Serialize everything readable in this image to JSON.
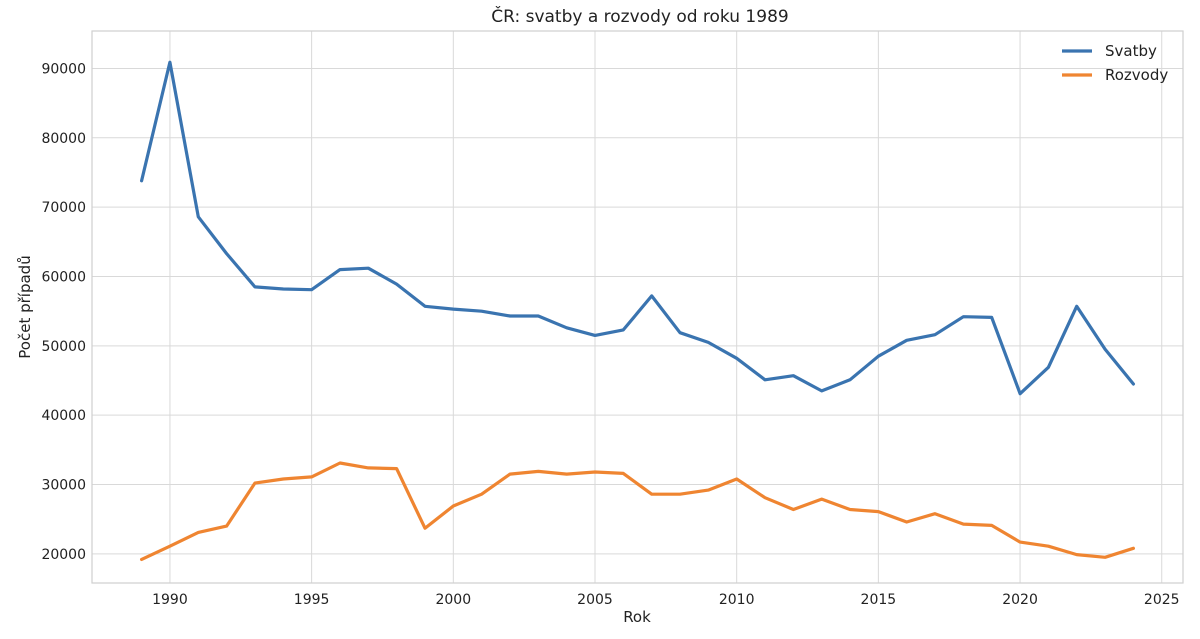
{
  "chart_data": {
    "type": "line",
    "title": "ČR: svatby a rozvody od roku 1989",
    "xlabel": "Rok",
    "ylabel": "Počet případů",
    "xlim": [
      1987.25,
      2025.75
    ],
    "ylim": [
      15800,
      95400
    ],
    "xticks": [
      1990,
      1995,
      2000,
      2005,
      2010,
      2015,
      2020,
      2025
    ],
    "yticks": [
      20000,
      30000,
      40000,
      50000,
      60000,
      70000,
      80000,
      90000
    ],
    "grid": true,
    "legend_position": "top-right",
    "x": [
      1989,
      1990,
      1991,
      1992,
      1993,
      1994,
      1995,
      1996,
      1997,
      1998,
      1999,
      2000,
      2001,
      2002,
      2003,
      2004,
      2005,
      2006,
      2007,
      2008,
      2009,
      2010,
      2011,
      2012,
      2013,
      2014,
      2015,
      2016,
      2017,
      2018,
      2019,
      2020,
      2021,
      2022,
      2023,
      2024
    ],
    "series": [
      {
        "name": "Svatby",
        "color": "#3a74b0",
        "values": [
          73800,
          90900,
          68600,
          63300,
          58500,
          58200,
          58100,
          61000,
          61200,
          58900,
          55700,
          55300,
          55000,
          54300,
          54300,
          52600,
          51500,
          52300,
          57200,
          51900,
          50500,
          48200,
          45100,
          45700,
          43500,
          45100,
          48500,
          50800,
          51600,
          54200,
          54100,
          43100,
          46900,
          55700,
          49500,
          44500
        ]
      },
      {
        "name": "Rozvody",
        "color": "#ef8531",
        "values": [
          19200,
          21100,
          23100,
          24000,
          30200,
          30800,
          31100,
          33100,
          32400,
          32300,
          23700,
          26900,
          28600,
          31500,
          31900,
          31500,
          31800,
          31600,
          28600,
          28600,
          29200,
          30800,
          28100,
          26400,
          27900,
          26400,
          26100,
          24600,
          25800,
          24300,
          24100,
          21700,
          21100,
          19900,
          19500,
          20800
        ]
      }
    ]
  }
}
